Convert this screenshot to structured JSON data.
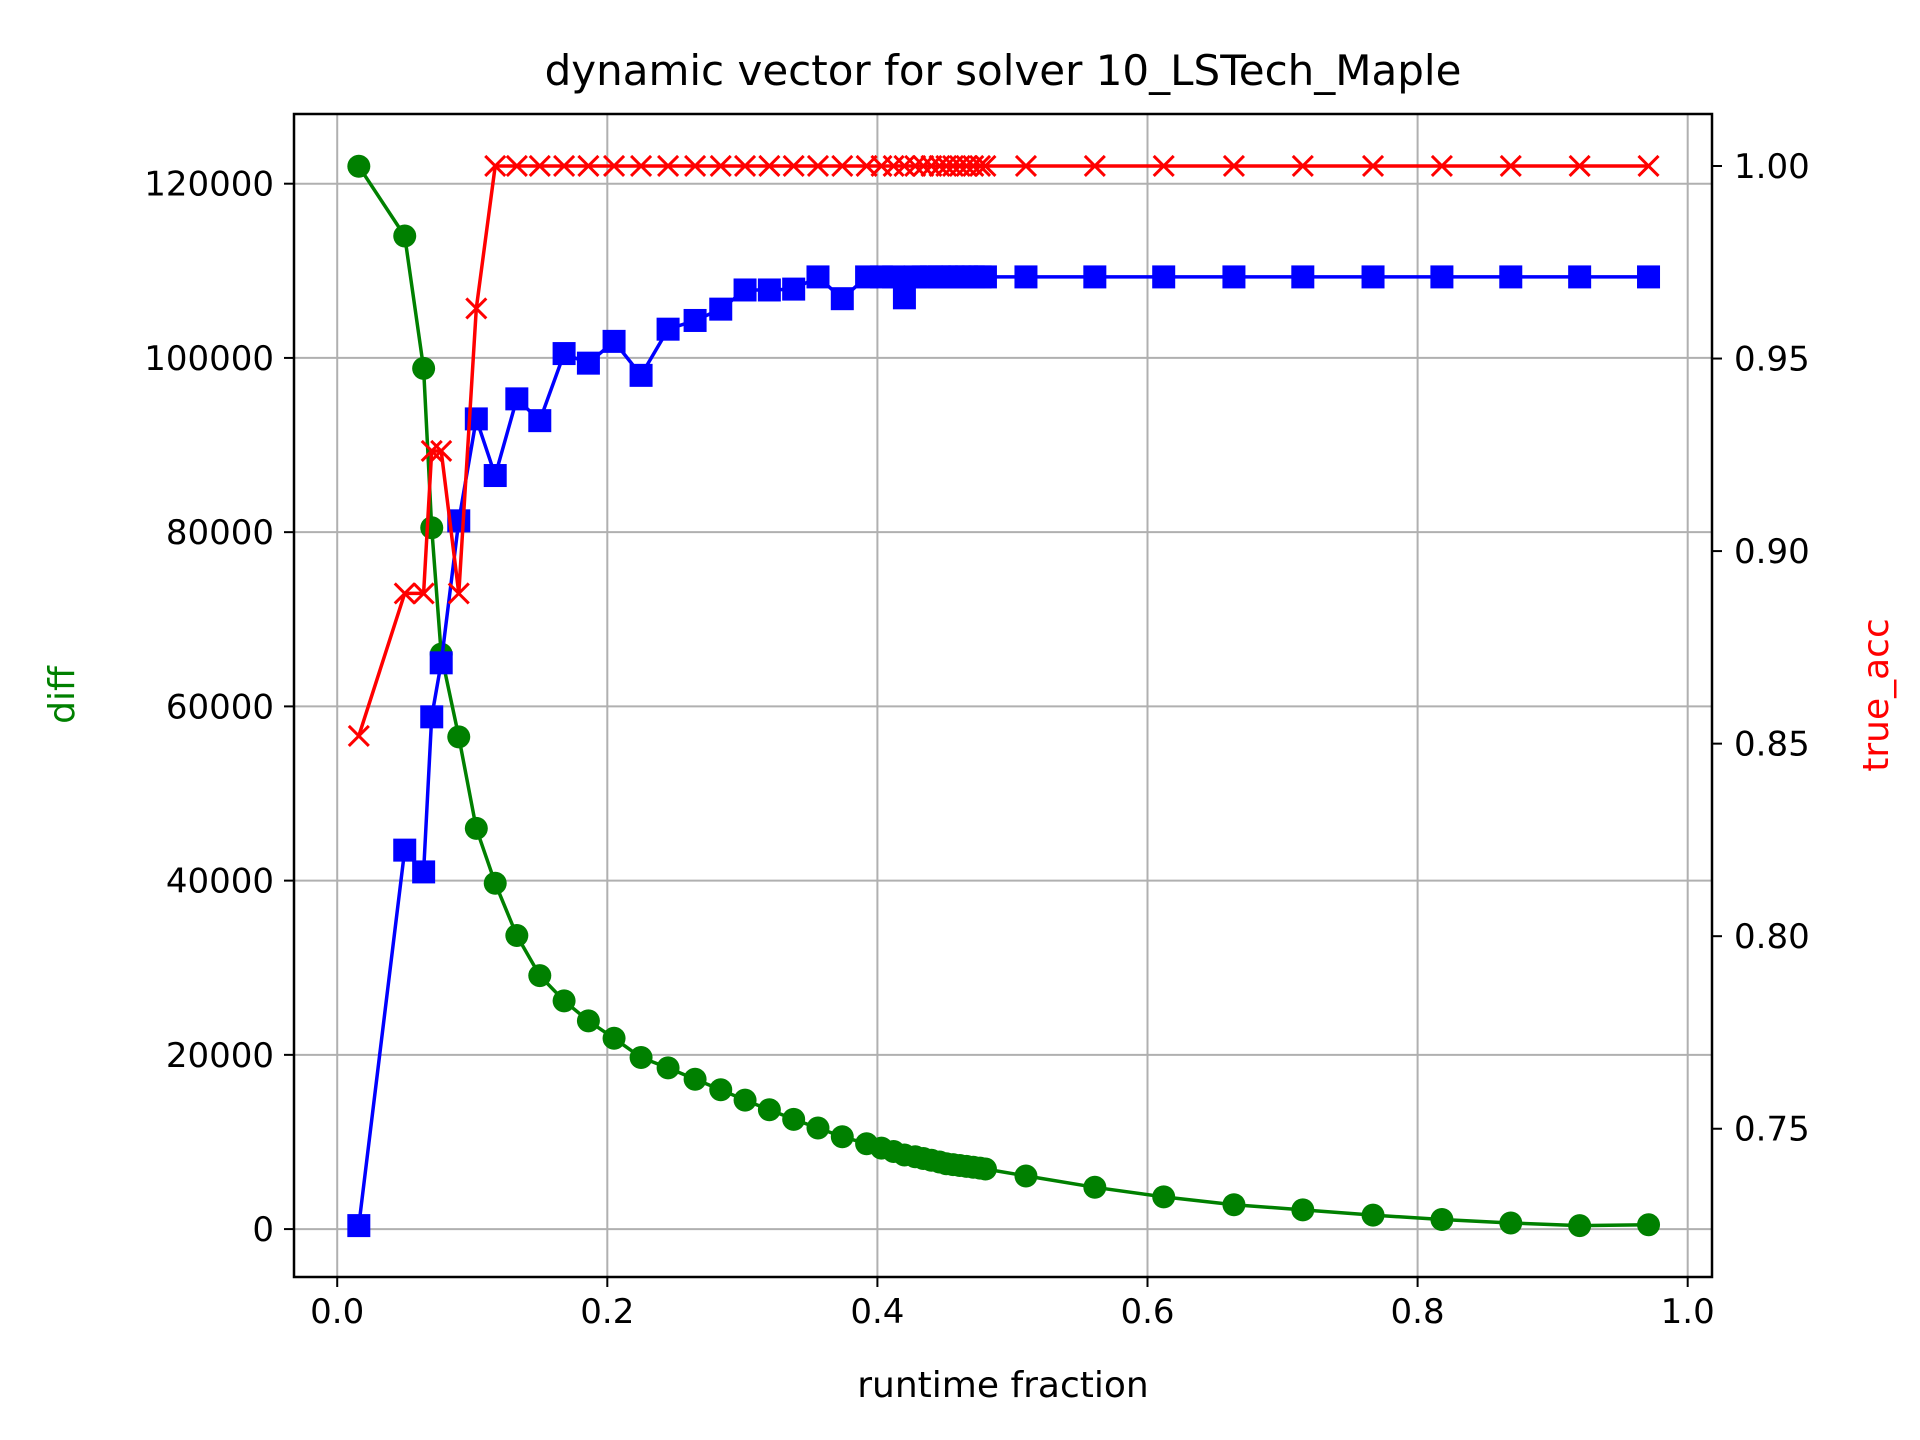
{
  "chart_data": {
    "type": "line",
    "title": "dynamic vector for solver 10_LSTech_Maple",
    "xlabel": "runtime fraction",
    "ylabel": "diff",
    "y2label": "true_acc",
    "xlim": [
      -0.032,
      1.018
    ],
    "ylim": [
      -5500,
      128000
    ],
    "y2lim": [
      0.7115,
      1.0135
    ],
    "xticks": [
      "0.0",
      "0.2",
      "0.4",
      "0.6",
      "0.8",
      "1.0"
    ],
    "xtick_values": [
      0,
      0.2,
      0.4,
      0.6,
      0.8,
      1.0
    ],
    "yticks": [
      "0",
      "20000",
      "40000",
      "60000",
      "80000",
      "100000",
      "120000"
    ],
    "ytick_values": [
      0,
      20000,
      40000,
      60000,
      80000,
      100000,
      120000
    ],
    "y2ticks": [
      "0.75",
      "0.80",
      "0.85",
      "0.90",
      "0.95",
      "1.00"
    ],
    "y2tick_values": [
      0.75,
      0.8,
      0.85,
      0.9,
      0.95,
      1.0
    ],
    "grid": true,
    "colors": {
      "diff": "#008000",
      "blue": "#0000ff",
      "true_acc": "#ff0000",
      "grid": "#b0b0b0"
    },
    "series": [
      {
        "color": "#008000",
        "marker": "circle",
        "axis": "left",
        "x": [
          0.016,
          0.05,
          0.064,
          0.07,
          0.077,
          0.09,
          0.103,
          0.117,
          0.133,
          0.15,
          0.168,
          0.186,
          0.205,
          0.225,
          0.245,
          0.265,
          0.284,
          0.302,
          0.32,
          0.338,
          0.356,
          0.374,
          0.392,
          0.403,
          0.412,
          0.42,
          0.428,
          0.434,
          0.44,
          0.446,
          0.451,
          0.456,
          0.461,
          0.466,
          0.471,
          0.476,
          0.48,
          0.51,
          0.561,
          0.612,
          0.664,
          0.715,
          0.767,
          0.818,
          0.869,
          0.92,
          0.971
        ],
        "y": [
          122000,
          114000,
          98800,
          80500,
          66000,
          56500,
          46000,
          39700,
          33700,
          29100,
          26200,
          23900,
          21900,
          19700,
          18500,
          17200,
          16000,
          14800,
          13700,
          12600,
          11600,
          10600,
          9800,
          9300,
          8900,
          8500,
          8300,
          8100,
          7900,
          7700,
          7500,
          7400,
          7300,
          7200,
          7100,
          7000,
          6900,
          6100,
          4800,
          3700,
          2800,
          2200,
          1600,
          1100,
          700,
          400,
          500
        ]
      },
      {
        "color": "#0000ff",
        "marker": "square",
        "axis": "left",
        "x": [
          0.016,
          0.05,
          0.064,
          0.07,
          0.077,
          0.09,
          0.103,
          0.117,
          0.133,
          0.15,
          0.168,
          0.186,
          0.205,
          0.225,
          0.245,
          0.265,
          0.284,
          0.302,
          0.32,
          0.338,
          0.356,
          0.374,
          0.392,
          0.403,
          0.412,
          0.42,
          0.428,
          0.434,
          0.44,
          0.446,
          0.451,
          0.456,
          0.461,
          0.466,
          0.471,
          0.476,
          0.48,
          0.51,
          0.561,
          0.612,
          0.664,
          0.715,
          0.767,
          0.818,
          0.869,
          0.92,
          0.971
        ],
        "y": [
          400,
          43500,
          41000,
          58800,
          65000,
          81300,
          93000,
          86500,
          95300,
          92800,
          100500,
          99400,
          101900,
          98000,
          103300,
          104300,
          105600,
          107800,
          107800,
          107900,
          109300,
          106800,
          109300,
          109300,
          109300,
          106900,
          109300,
          109300,
          109300,
          109300,
          109300,
          109300,
          109300,
          109300,
          109300,
          109300,
          109300,
          109300,
          109300,
          109300,
          109300,
          109300,
          109300,
          109300,
          109300,
          109300,
          109300
        ]
      },
      {
        "color": "#ff0000",
        "marker": "x",
        "axis": "right",
        "x": [
          0.016,
          0.05,
          0.064,
          0.07,
          0.077,
          0.09,
          0.103,
          0.117,
          0.133,
          0.15,
          0.168,
          0.186,
          0.205,
          0.225,
          0.245,
          0.265,
          0.284,
          0.302,
          0.32,
          0.338,
          0.356,
          0.374,
          0.392,
          0.403,
          0.412,
          0.42,
          0.428,
          0.434,
          0.44,
          0.446,
          0.451,
          0.456,
          0.461,
          0.466,
          0.471,
          0.476,
          0.48,
          0.51,
          0.561,
          0.612,
          0.664,
          0.715,
          0.767,
          0.818,
          0.869,
          0.92,
          0.971
        ],
        "y": [
          0.852,
          0.889,
          0.889,
          0.926,
          0.926,
          0.889,
          0.963,
          1.0,
          1.0,
          1.0,
          1.0,
          1.0,
          1.0,
          1.0,
          1.0,
          1.0,
          1.0,
          1.0,
          1.0,
          1.0,
          1.0,
          1.0,
          1.0,
          1.0,
          1.0,
          1.0,
          1.0,
          1.0,
          1.0,
          1.0,
          1.0,
          1.0,
          1.0,
          1.0,
          1.0,
          1.0,
          1.0,
          1.0,
          1.0,
          1.0,
          1.0,
          1.0,
          1.0,
          1.0,
          1.0,
          1.0,
          1.0
        ]
      }
    ]
  }
}
